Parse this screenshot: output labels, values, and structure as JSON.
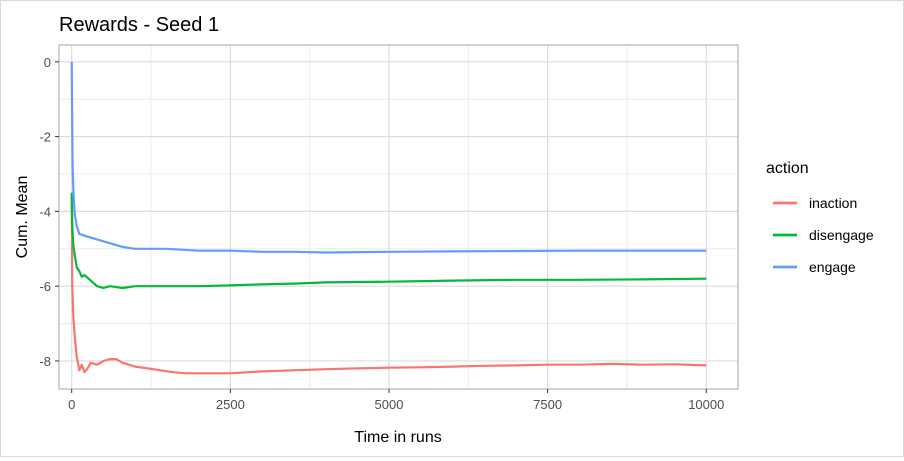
{
  "chart_data": {
    "type": "line",
    "title": "Rewards - Seed 1",
    "xlabel": "Time in runs",
    "ylabel": "Cum. Mean",
    "xlim": [
      -200,
      10500
    ],
    "ylim": [
      -8.75,
      0.45
    ],
    "x_ticks": [
      0,
      2500,
      5000,
      7500,
      10000
    ],
    "x_tick_labels": [
      "0",
      "2500",
      "5000",
      "7500",
      "10000"
    ],
    "y_ticks": [
      0,
      -2,
      -4,
      -6,
      -8
    ],
    "y_tick_labels": [
      "0",
      "-2",
      "-4",
      "-6",
      "-8"
    ],
    "grid": true,
    "legend": {
      "title": "action",
      "position": "right"
    },
    "series": [
      {
        "name": "inaction",
        "color": "#F8766D",
        "x": [
          0,
          10,
          25,
          50,
          80,
          120,
          160,
          200,
          250,
          300,
          400,
          500,
          600,
          700,
          800,
          1000,
          1200,
          1400,
          1600,
          1800,
          2000,
          2200,
          2500,
          3000,
          3500,
          4000,
          4500,
          5000,
          5500,
          6000,
          6500,
          7000,
          7500,
          8000,
          8500,
          9000,
          9500,
          10000
        ],
        "y": [
          -3.6,
          -6.0,
          -6.8,
          -7.4,
          -7.9,
          -8.25,
          -8.1,
          -8.3,
          -8.2,
          -8.05,
          -8.1,
          -8.0,
          -7.95,
          -7.95,
          -8.05,
          -8.15,
          -8.2,
          -8.25,
          -8.3,
          -8.33,
          -8.33,
          -8.33,
          -8.33,
          -8.28,
          -8.25,
          -8.22,
          -8.2,
          -8.18,
          -8.17,
          -8.15,
          -8.13,
          -8.12,
          -8.1,
          -8.1,
          -8.08,
          -8.1,
          -8.09,
          -8.12
        ]
      },
      {
        "name": "disengage",
        "color": "#00BA38",
        "x": [
          0,
          10,
          25,
          50,
          80,
          120,
          160,
          200,
          300,
          400,
          500,
          600,
          800,
          1000,
          1500,
          2000,
          2500,
          3000,
          3500,
          4000,
          5000,
          6000,
          7000,
          8000,
          9000,
          10000
        ],
        "y": [
          -3.5,
          -4.4,
          -4.9,
          -5.2,
          -5.5,
          -5.6,
          -5.75,
          -5.7,
          -5.85,
          -6.0,
          -6.05,
          -6.0,
          -6.05,
          -6.0,
          -6.0,
          -6.0,
          -5.98,
          -5.95,
          -5.93,
          -5.9,
          -5.88,
          -5.85,
          -5.83,
          -5.83,
          -5.82,
          -5.8
        ]
      },
      {
        "name": "engage",
        "color": "#619CFF",
        "x": [
          0,
          8,
          15,
          30,
          50,
          80,
          120,
          200,
          300,
          400,
          500,
          600,
          800,
          1000,
          1500,
          2000,
          2500,
          3000,
          3500,
          4000,
          5000,
          6000,
          7000,
          8000,
          9000,
          10000
        ],
        "y": [
          0.0,
          -1.6,
          -2.8,
          -3.6,
          -4.1,
          -4.4,
          -4.6,
          -4.65,
          -4.7,
          -4.75,
          -4.8,
          -4.85,
          -4.95,
          -5.0,
          -5.0,
          -5.05,
          -5.05,
          -5.08,
          -5.08,
          -5.1,
          -5.08,
          -5.07,
          -5.06,
          -5.05,
          -5.05,
          -5.05
        ]
      }
    ]
  }
}
